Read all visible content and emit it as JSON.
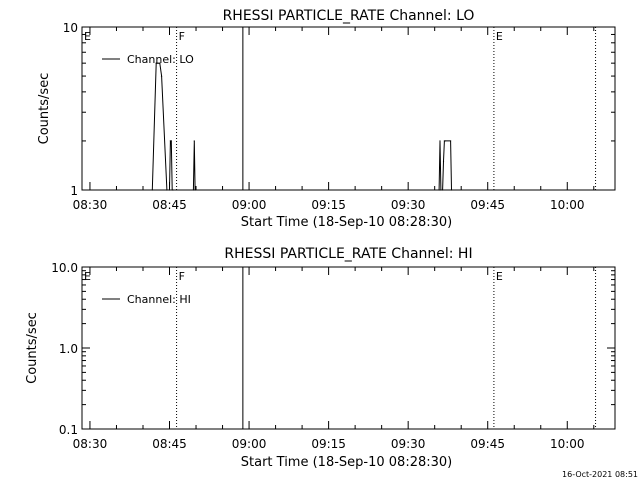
{
  "stamp": "16-Oct-2021 08:51",
  "chart_data": [
    {
      "type": "line",
      "title": "RHESSI PARTICLE_RATE Channel: LO",
      "xlabel": "Start Time (18-Sep-10 08:28:30)",
      "ylabel": "Counts/sec",
      "yscale": "log",
      "ylim": [
        1,
        10
      ],
      "xlim": [
        "08:28:30",
        "10:09:00"
      ],
      "x_ticks": [
        "08:30",
        "08:45",
        "09:00",
        "09:15",
        "09:30",
        "09:45",
        "10:00"
      ],
      "y_ticks": [
        "1",
        "10"
      ],
      "grid": false,
      "legend": "top-left",
      "series": [
        {
          "name": "Channel: LO",
          "x": [
            "08:41:45",
            "08:42:30",
            "08:42:50",
            "08:43:10",
            "08:43:30",
            "08:44:30",
            "08:45:00",
            "08:45:10",
            "08:45:20",
            "08:45:30",
            "08:45:40",
            "08:49:30",
            "08:49:40",
            "08:49:50",
            "09:35:50",
            "09:36:00",
            "09:36:10",
            "09:36:30",
            "09:36:40",
            "09:36:50",
            "09:37:00",
            "09:38:00",
            "09:38:10"
          ],
          "values": [
            1,
            6,
            6,
            6,
            5,
            1,
            1,
            2,
            2,
            1,
            1,
            1,
            2,
            1,
            1,
            2,
            1,
            1,
            1.5,
            2,
            2,
            2,
            1
          ]
        }
      ],
      "markers": [
        {
          "label": "E",
          "time": "08:28:30",
          "style": "none"
        },
        {
          "label": "F",
          "time": "08:46:20",
          "style": "dotted"
        },
        {
          "label": "",
          "time": "08:58:50",
          "style": "solid"
        },
        {
          "label": "E",
          "time": "09:46:10",
          "style": "dotted"
        },
        {
          "label": "",
          "time": "10:05:20",
          "style": "dotted"
        }
      ]
    },
    {
      "type": "line",
      "title": "RHESSI PARTICLE_RATE Channel: HI",
      "xlabel": "Start Time (18-Sep-10 08:28:30)",
      "ylabel": "Counts/sec",
      "yscale": "log",
      "ylim": [
        0.1,
        10
      ],
      "xlim": [
        "08:28:30",
        "10:09:00"
      ],
      "x_ticks": [
        "08:30",
        "08:45",
        "09:00",
        "09:15",
        "09:30",
        "09:45",
        "10:00"
      ],
      "y_ticks": [
        "0.1",
        "1.0",
        "10.0"
      ],
      "grid": false,
      "legend": "top-left",
      "series": [
        {
          "name": "Channel: HI",
          "x": [],
          "values": []
        }
      ],
      "markers": [
        {
          "label": "E",
          "time": "08:28:30",
          "style": "none"
        },
        {
          "label": "F",
          "time": "08:46:20",
          "style": "dotted"
        },
        {
          "label": "",
          "time": "08:58:50",
          "style": "solid"
        },
        {
          "label": "E",
          "time": "09:46:10",
          "style": "dotted"
        },
        {
          "label": "",
          "time": "10:05:20",
          "style": "dotted"
        }
      ]
    }
  ]
}
